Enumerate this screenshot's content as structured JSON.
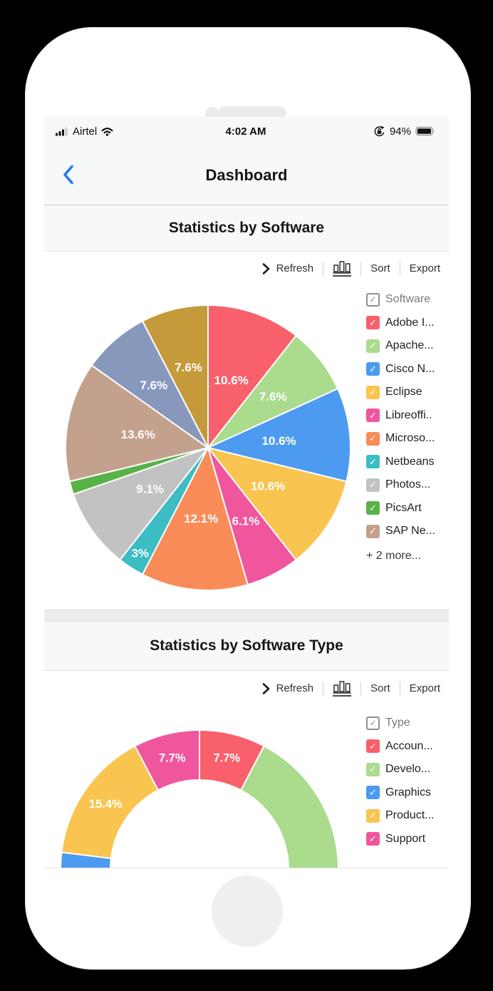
{
  "status_bar": {
    "carrier": "Airtel",
    "time": "4:02 AM",
    "battery_percent": "94%"
  },
  "navbar": {
    "title": "Dashboard"
  },
  "sections": [
    {
      "title": "Statistics by Software",
      "toolbar": {
        "refresh_label": "Refresh",
        "sort_label": "Sort",
        "export_label": "Export"
      }
    },
    {
      "title": "Statistics by Software Type",
      "toolbar": {
        "refresh_label": "Refresh",
        "sort_label": "Sort",
        "export_label": "Export"
      }
    }
  ],
  "chart_data": [
    {
      "type": "pie",
      "title": "Statistics by Software",
      "legend_position": "right",
      "legend_header": "Software",
      "legend_more_label": "+ 2 more...",
      "slices": [
        {
          "name": "Adobe I...",
          "value": 10.6,
          "label": "10.6%",
          "color": "#f8606b"
        },
        {
          "name": "Apache...",
          "value": 7.6,
          "label": "7.6%",
          "color": "#abdb8d"
        },
        {
          "name": "Cisco N...",
          "value": 10.6,
          "label": "10.6%",
          "color": "#4d9bf0"
        },
        {
          "name": "Eclipse",
          "value": 10.6,
          "label": "10.6%",
          "color": "#f9c44f"
        },
        {
          "name": "Libreoffi..",
          "value": 6.1,
          "label": "6.1%",
          "color": "#f0569e"
        },
        {
          "name": "Microso...",
          "value": 12.1,
          "label": "12.1%",
          "color": "#f98c59"
        },
        {
          "name": "Netbeans",
          "value": 3,
          "label": "3%",
          "color": "#3cbcc3"
        },
        {
          "name": "Photos...",
          "value": 9.1,
          "label": "9.1%",
          "color": "#c2c2c2"
        },
        {
          "name": "PicsArt",
          "value": 1.5,
          "label": "",
          "color": "#57b348"
        },
        {
          "name": "SAP Ne...",
          "value": 13.6,
          "label": "13.6%",
          "color": "#c4a18c"
        },
        {
          "name": "",
          "value": 7.6,
          "label": "7.6%",
          "color": "#8897bc"
        },
        {
          "name": "",
          "value": 7.6,
          "label": "7.6%",
          "color": "#c49a3a"
        }
      ]
    },
    {
      "type": "donut",
      "title": "Statistics by Software Type",
      "legend_position": "right",
      "legend_header": "Type",
      "slices": [
        {
          "name": "Accoun...",
          "value": 7.7,
          "label": "7.7%",
          "color": "#f8606b"
        },
        {
          "name": "Develo...",
          "value": 38.5,
          "label": "",
          "color": "#abdb8d"
        },
        {
          "name": "Graphics",
          "value": 30.8,
          "label": "",
          "color": "#4d9bf0"
        },
        {
          "name": "Product...",
          "value": 15.4,
          "label": "15.4%",
          "color": "#f9c44f"
        },
        {
          "name": "Support",
          "value": 7.7,
          "label": "7.7%",
          "color": "#f0569e"
        }
      ]
    }
  ]
}
